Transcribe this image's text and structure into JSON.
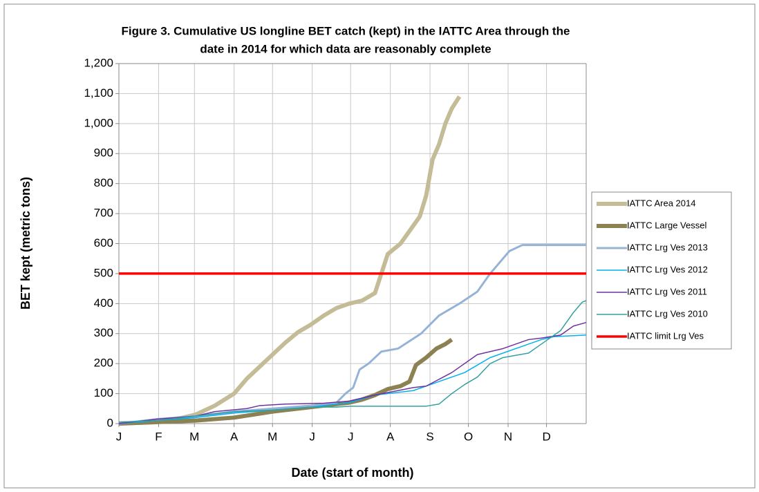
{
  "chart_data": {
    "type": "line",
    "title": [
      "Figure 3. Cumulative US longline BET catch (kept) in the IATTC Area through the",
      "date  in 2014 for which data are reasonably complete"
    ],
    "x_label": "Date (start of month)",
    "y_label": "BET kept (metric tons)",
    "xlim": [
      0,
      365
    ],
    "xticks": [
      {
        "value": 0,
        "label": "J"
      },
      {
        "value": 31,
        "label": "F"
      },
      {
        "value": 59,
        "label": "M"
      },
      {
        "value": 90,
        "label": "A"
      },
      {
        "value": 120,
        "label": "M"
      },
      {
        "value": 151,
        "label": "J"
      },
      {
        "value": 181,
        "label": "J"
      },
      {
        "value": 212,
        "label": "A"
      },
      {
        "value": 243,
        "label": "S"
      },
      {
        "value": 273,
        "label": "O"
      },
      {
        "value": 304,
        "label": "N"
      },
      {
        "value": 334,
        "label": "D"
      }
    ],
    "ylim": [
      0,
      1200
    ],
    "yticks": [
      0,
      100,
      200,
      300,
      400,
      500,
      600,
      700,
      800,
      900,
      {
        "value": 1000,
        "label": "1,000"
      },
      {
        "value": 1100,
        "label": "1,100"
      },
      {
        "value": 1200,
        "label": "1,200"
      }
    ],
    "grid": true,
    "series": [
      {
        "name": "IATTC Area 2014",
        "color": "#c4bc96",
        "width": 6,
        "x": [
          0,
          30,
          45,
          60,
          75,
          90,
          100,
          110,
          120,
          130,
          140,
          150,
          160,
          170,
          180,
          190,
          200,
          205,
          210,
          220,
          230,
          235,
          240,
          245,
          250,
          255,
          260,
          266
        ],
        "values": [
          0,
          5,
          15,
          30,
          60,
          100,
          150,
          190,
          230,
          270,
          305,
          330,
          360,
          385,
          400,
          410,
          435,
          500,
          565,
          600,
          660,
          690,
          760,
          880,
          930,
          1000,
          1050,
          1090
        ]
      },
      {
        "name": "IATTC Large Vessel",
        "color": "#8b8152",
        "width": 6,
        "x": [
          0,
          60,
          90,
          120,
          150,
          170,
          180,
          190,
          200,
          210,
          220,
          227,
          232,
          240,
          248,
          255,
          260
        ],
        "values": [
          0,
          10,
          20,
          40,
          55,
          65,
          70,
          80,
          95,
          115,
          125,
          140,
          195,
          220,
          250,
          265,
          280
        ]
      },
      {
        "name": "IATTC Lrg Ves 2013",
        "color": "#95b3d7",
        "width": 3,
        "x": [
          0,
          30,
          60,
          90,
          120,
          150,
          170,
          177,
          183,
          188,
          195,
          205,
          218,
          236,
          250,
          266,
          280,
          290,
          305,
          315,
          365
        ],
        "values": [
          0,
          15,
          25,
          40,
          50,
          60,
          70,
          100,
          120,
          180,
          200,
          240,
          250,
          300,
          360,
          400,
          440,
          500,
          575,
          595,
          595
        ]
      },
      {
        "name": "IATTC Lrg Ves 2012",
        "color": "#00b0f0",
        "width": 1.5,
        "x": [
          0,
          30,
          60,
          90,
          120,
          150,
          180,
          200,
          230,
          250,
          270,
          290,
          310,
          330,
          340,
          365
        ],
        "values": [
          0,
          10,
          20,
          35,
          45,
          55,
          70,
          95,
          110,
          140,
          170,
          220,
          250,
          280,
          290,
          295
        ]
      },
      {
        "name": "IATTC Lrg Ves 2011",
        "color": "#7030a0",
        "width": 1.5,
        "x": [
          0,
          30,
          60,
          75,
          100,
          110,
          130,
          160,
          180,
          200,
          230,
          240,
          260,
          280,
          300,
          320,
          330,
          345,
          355,
          365
        ],
        "values": [
          0,
          15,
          25,
          40,
          50,
          60,
          65,
          68,
          75,
          95,
          120,
          125,
          170,
          230,
          250,
          280,
          285,
          295,
          325,
          337
        ]
      },
      {
        "name": "IATTC Lrg Ves 2010",
        "color": "#31a0a0",
        "width": 1.5,
        "x": [
          0,
          30,
          60,
          90,
          120,
          150,
          170,
          180,
          210,
          240,
          250,
          260,
          270,
          280,
          290,
          300,
          320,
          330,
          345,
          355,
          362,
          365
        ],
        "values": [
          5,
          10,
          25,
          40,
          45,
          55,
          55,
          58,
          58,
          58,
          65,
          100,
          130,
          155,
          200,
          220,
          235,
          265,
          310,
          370,
          405,
          410
        ]
      },
      {
        "name": "IATTC limit Lrg Ves",
        "color": "#ff0000",
        "width": 3.5,
        "x": [
          0,
          365
        ],
        "values": [
          500,
          500
        ]
      }
    ]
  }
}
